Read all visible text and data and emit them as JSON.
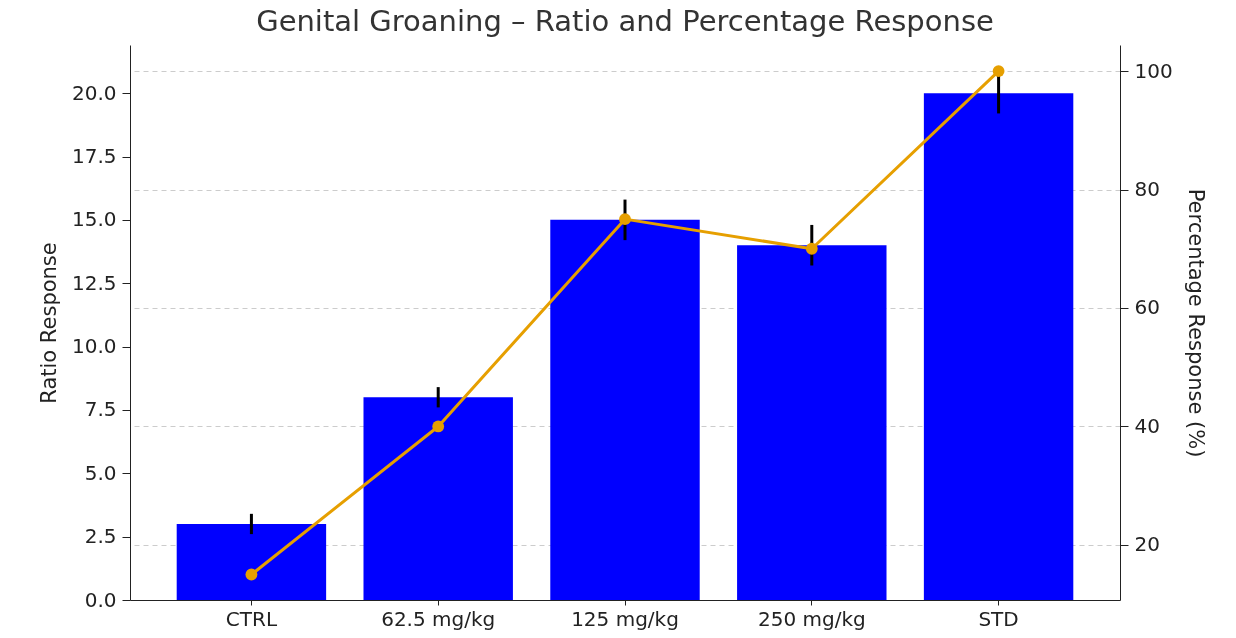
{
  "chart_data": {
    "type": "bar",
    "title": "Genital Groaning – Ratio and Percentage Response",
    "categories": [
      "CTRL",
      "62.5 mg/kg",
      "125 mg/kg",
      "250 mg/kg",
      "STD"
    ],
    "ylabel": "Ratio Response",
    "y2label": "Percentage Response (%)",
    "ylim": [
      0,
      21.9
    ],
    "yticks": [
      {
        "value": 0,
        "label": "0.0"
      },
      {
        "value": 2.5,
        "label": "2.5"
      },
      {
        "value": 5,
        "label": "5.0"
      },
      {
        "value": 7.5,
        "label": "7.5"
      },
      {
        "value": 10,
        "label": "10.0"
      },
      {
        "value": 12.5,
        "label": "12.5"
      },
      {
        "value": 15,
        "label": "15.0"
      },
      {
        "value": 17.5,
        "label": "17.5"
      },
      {
        "value": 20,
        "label": "20.0"
      }
    ],
    "y2lim": [
      10.7,
      104.4
    ],
    "y2ticks": [
      20,
      40,
      60,
      80,
      100
    ],
    "grid": true,
    "marker": "circle",
    "series": [
      {
        "color": "#0000ff",
        "values": [
          3,
          8,
          15,
          14,
          20
        ],
        "errors": [
          0.4,
          0.4,
          0.8,
          0.8,
          0.8
        ]
      },
      {
        "type": "line",
        "axis": "y2",
        "color": "#e69f00",
        "values": [
          15,
          40,
          75,
          70,
          100
        ]
      }
    ]
  }
}
